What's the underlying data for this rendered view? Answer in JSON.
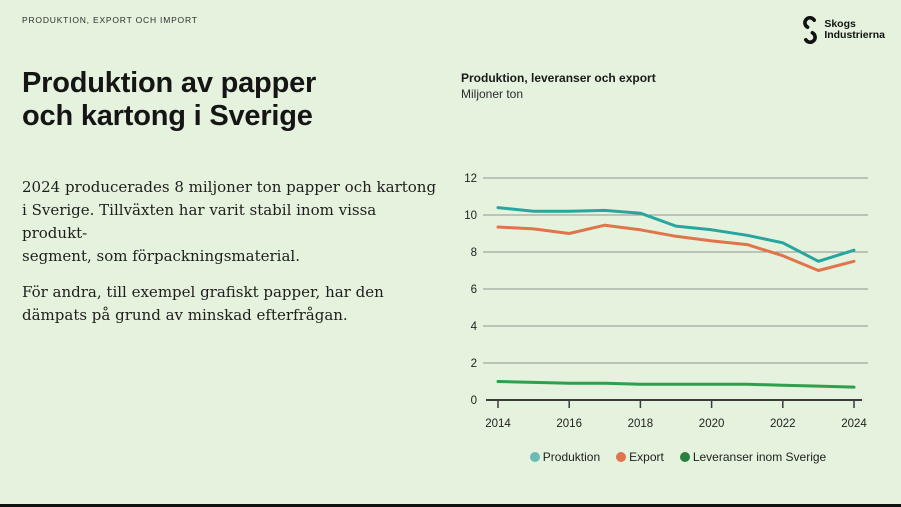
{
  "slide": {
    "eyebrow": "PRODUKTION, EXPORT OCH IMPORT",
    "title_line1": "Produktion av papper",
    "title_line2": "och kartong i Sverige",
    "body1_lines": [
      "2024 producerades 8 miljoner ton papper och kartong",
      "i Sverige. Tillväxten har varit stabil inom vissa produkt-",
      "segment, som förpackningsmaterial."
    ],
    "body2_lines": [
      "För andra, till exempel grafiskt papper, har den",
      "dämpats på grund av minskad efterfrågan."
    ],
    "logo": {
      "line1": "Skogs",
      "line2": "Industrierna"
    }
  },
  "colors": {
    "background": "#e5f2de",
    "grid": "#8f978f",
    "axis": "#3b3b3b",
    "produktion_line": "#29a5a0",
    "export_line": "#e0744a",
    "leveranser_line": "#2f9e4d",
    "produktion_legend_dot": "#6bbcb7",
    "export_legend_dot": "#e0744a",
    "leveranser_legend_dot": "#28813e",
    "bottom_bar": "#111111"
  },
  "chart_data": {
    "type": "line",
    "title": "Produktion, leveranser och export",
    "subtitle": "Miljoner ton",
    "x": [
      2014,
      2015,
      2016,
      2017,
      2018,
      2019,
      2020,
      2021,
      2022,
      2023,
      2024
    ],
    "x_tick_labels": [
      "2014",
      "2016",
      "2018",
      "2020",
      "2022",
      "2024"
    ],
    "y_ticks": [
      0,
      2,
      4,
      6,
      8,
      10,
      12
    ],
    "ylim": [
      0,
      12
    ],
    "grid": true,
    "legend_position": "bottom",
    "series": [
      {
        "name": "Produktion",
        "color": "#29a5a0",
        "legend_color": "#6bbcb7",
        "values": [
          10.4,
          10.2,
          10.2,
          10.25,
          10.1,
          9.4,
          9.2,
          8.9,
          8.5,
          7.5,
          8.1
        ]
      },
      {
        "name": "Export",
        "color": "#e0744a",
        "legend_color": "#e0744a",
        "values": [
          9.35,
          9.25,
          9.0,
          9.45,
          9.2,
          8.85,
          8.6,
          8.4,
          7.8,
          7.0,
          7.5
        ]
      },
      {
        "name": "Leveranser inom Sverige",
        "color": "#2f9e4d",
        "legend_color": "#28813e",
        "values": [
          1.0,
          0.95,
          0.9,
          0.9,
          0.85,
          0.85,
          0.85,
          0.85,
          0.8,
          0.75,
          0.7
        ]
      }
    ]
  }
}
